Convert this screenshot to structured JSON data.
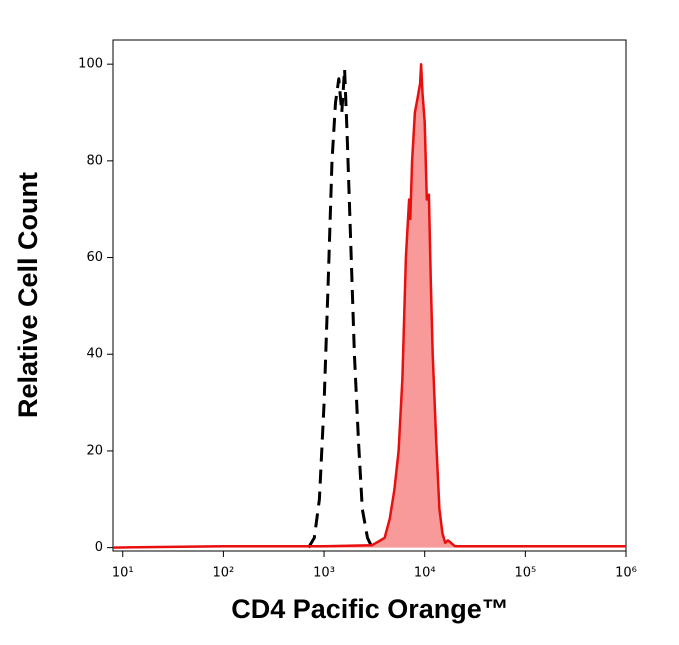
{
  "chart_data": {
    "type": "histogram-overlay",
    "xlabel": "CD4 Pacific Orange™",
    "ylabel": "Relative Cell Count",
    "xscale": "log",
    "xlim": [
      8,
      1000000
    ],
    "ylim": [
      -0.7,
      105
    ],
    "xticks": [
      {
        "value": 10,
        "label": "10¹"
      },
      {
        "value": 100,
        "label": "10²"
      },
      {
        "value": 1000,
        "label": "10³"
      },
      {
        "value": 10000,
        "label": "10⁴"
      },
      {
        "value": 100000,
        "label": "10⁵"
      },
      {
        "value": 1000000,
        "label": "10⁶"
      }
    ],
    "yticks": [
      0,
      20,
      40,
      60,
      80,
      100
    ],
    "series": [
      {
        "color": "#000000",
        "dashed": true,
        "filled": false,
        "x": [
          700,
          800,
          900,
          1000,
          1100,
          1200,
          1300,
          1400,
          1500,
          1600,
          1700,
          1850,
          2000,
          2200,
          2400,
          2700,
          3000
        ],
        "values": [
          0,
          2,
          10,
          30,
          55,
          80,
          92,
          97,
          90,
          99,
          85,
          62,
          40,
          22,
          8,
          2,
          0
        ]
      },
      {
        "color": "#e8100f",
        "dashed": false,
        "filled": true,
        "fill": "#f99a9a",
        "x": [
          8,
          100,
          1000,
          3000,
          4000,
          4500,
          5000,
          5500,
          6000,
          6500,
          7000,
          7200,
          7500,
          8000,
          8500,
          9000,
          9200,
          9500,
          10000,
          10500,
          11000,
          11500,
          12000,
          13000,
          14000,
          15000,
          16000,
          17000,
          20000,
          100000,
          1000000
        ],
        "values": [
          0,
          0.3,
          0.3,
          0.5,
          2,
          6,
          12,
          20,
          35,
          60,
          72,
          68,
          80,
          90,
          93,
          96,
          100,
          94,
          88,
          72,
          73,
          55,
          40,
          22,
          8,
          3,
          1,
          1.5,
          0.3,
          0.3,
          0.3
        ]
      }
    ]
  }
}
